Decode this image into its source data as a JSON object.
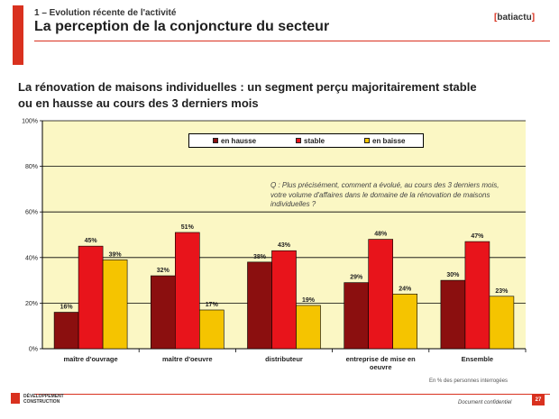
{
  "header": {
    "kicker": "1 – Evolution récente de l'activité",
    "title": "La perception de la conjoncture du secteur",
    "logo_left": "[",
    "logo_text": "batiactu",
    "logo_right": "]"
  },
  "subtitle": {
    "line1": "La rénovation de maisons individuelles : un segment perçu majoritairement stable",
    "line2": "ou en hausse au cours des 3 derniers mois"
  },
  "question": "Q : Plus précisément, comment a évolué, au cours des 3 derniers mois, votre volume d'affaires dans le domaine de la rénovation de maisons individuelles ?",
  "footnote": "En % des personnes interrogées",
  "footer": {
    "brand_line1": "DÉVELOPPEMENT",
    "brand_line2": "CONSTRUCTION",
    "confidential": "Document confidentiel",
    "page": "27"
  },
  "colors": {
    "hausse": "#8b0f0f",
    "stable": "#e8141b",
    "baisse": "#f5c400",
    "plot_bg": "#fbf7c4"
  },
  "chart_data": {
    "type": "bar",
    "title": "",
    "xlabel": "",
    "ylabel": "",
    "ylim": [
      0,
      100
    ],
    "yticks": [
      0,
      20,
      40,
      60,
      80,
      100
    ],
    "ytick_labels": [
      "0%",
      "20%",
      "40%",
      "60%",
      "80%",
      "100%"
    ],
    "categories": [
      "maître d'ouvrage",
      "maître d'oeuvre",
      "distributeur",
      "entreprise de mise en oeuvre",
      "Ensemble"
    ],
    "series": [
      {
        "name": "en hausse",
        "color": "#8b0f0f",
        "values": [
          16,
          32,
          38,
          29,
          30
        ],
        "labels": [
          "16%",
          "32%",
          "38%",
          "29%",
          "30%"
        ]
      },
      {
        "name": "stable",
        "color": "#e8141b",
        "values": [
          45,
          51,
          43,
          48,
          47
        ],
        "labels": [
          "45%",
          "51%",
          "43%",
          "48%",
          "47%"
        ]
      },
      {
        "name": "en baisse",
        "color": "#f5c400",
        "values": [
          39,
          17,
          19,
          24,
          23
        ],
        "labels": [
          "39%",
          "17%",
          "19%",
          "24%",
          "23%"
        ]
      }
    ],
    "legend_position": "top-center"
  }
}
